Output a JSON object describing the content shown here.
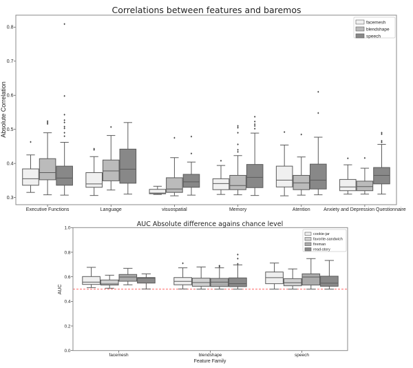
{
  "chart_data": [
    {
      "type": "box",
      "title": "Correlations between features and baremos",
      "xlabel": "",
      "ylabel": "Absolute Correlation",
      "ylim": [
        0.279,
        0.835
      ],
      "yticks": [
        0.3,
        0.4,
        0.5,
        0.6,
        0.7,
        0.8
      ],
      "ytick_labels": [
        "0.3",
        "0.4",
        "0.5",
        "0.6",
        "0.7",
        "0.8"
      ],
      "legend": "top-right",
      "grid": false,
      "categories": [
        "Executive Functions",
        "Language",
        "visuospatial",
        "Memory",
        "Atention",
        "Anxiety and Depression Questionnaire"
      ],
      "series": [
        {
          "name": "facemesh",
          "color": "#f0f0f0",
          "boxes": [
            {
              "low": 0.315,
              "q1": 0.336,
              "med": 0.355,
              "q3": 0.384,
              "high": 0.425,
              "outliers": [
                0.463
              ]
            },
            {
              "low": 0.306,
              "q1": 0.33,
              "med": 0.34,
              "q3": 0.373,
              "high": 0.42,
              "outliers": [
                0.44,
                0.443
              ]
            },
            {
              "low": 0.309,
              "q1": 0.311,
              "med": 0.313,
              "q3": 0.324,
              "high": 0.333,
              "outliers": []
            },
            {
              "low": 0.309,
              "q1": 0.323,
              "med": 0.341,
              "q3": 0.355,
              "high": 0.394,
              "outliers": [
                0.408
              ]
            },
            {
              "low": 0.305,
              "q1": 0.331,
              "med": 0.351,
              "q3": 0.392,
              "high": 0.454,
              "outliers": [
                0.492
              ]
            },
            {
              "low": 0.31,
              "q1": 0.32,
              "med": 0.331,
              "q3": 0.353,
              "high": 0.396,
              "outliers": [
                0.415
              ]
            }
          ]
        },
        {
          "name": "blendshape",
          "color": "#bbbbbb",
          "boxes": [
            {
              "low": 0.308,
              "q1": 0.352,
              "med": 0.373,
              "q3": 0.414,
              "high": 0.49,
              "outliers": [
                0.516,
                0.52,
                0.524
              ]
            },
            {
              "low": 0.322,
              "q1": 0.349,
              "med": 0.378,
              "q3": 0.41,
              "high": 0.482,
              "outliers": [
                0.507
              ]
            },
            {
              "low": 0.305,
              "q1": 0.315,
              "med": 0.325,
              "q3": 0.358,
              "high": 0.417,
              "outliers": [
                0.475
              ]
            },
            {
              "low": 0.308,
              "q1": 0.323,
              "med": 0.335,
              "q3": 0.365,
              "high": 0.423,
              "outliers": [
                0.434,
                0.44,
                0.456,
                0.49,
                0.505,
                0.51
              ]
            },
            {
              "low": 0.307,
              "q1": 0.323,
              "med": 0.343,
              "q3": 0.365,
              "high": 0.419,
              "outliers": [
                0.485
              ]
            },
            {
              "low": 0.31,
              "q1": 0.32,
              "med": 0.332,
              "q3": 0.348,
              "high": 0.386,
              "outliers": [
                0.416
              ]
            }
          ]
        },
        {
          "name": "speech",
          "color": "#888888",
          "boxes": [
            {
              "low": 0.307,
              "q1": 0.336,
              "med": 0.357,
              "q3": 0.392,
              "high": 0.462,
              "outliers": [
                0.48,
                0.49,
                0.503,
                0.508,
                0.52,
                0.527,
                0.543,
                0.598,
                0.809
              ]
            },
            {
              "low": 0.31,
              "q1": 0.342,
              "med": 0.383,
              "q3": 0.442,
              "high": 0.52,
              "outliers": []
            },
            {
              "low": 0.307,
              "q1": 0.33,
              "med": 0.346,
              "q3": 0.368,
              "high": 0.404,
              "outliers": [
                0.429,
                0.479
              ]
            },
            {
              "low": 0.306,
              "q1": 0.329,
              "med": 0.359,
              "q3": 0.397,
              "high": 0.489,
              "outliers": [
                0.502,
                0.51,
                0.515,
                0.523,
                0.537
              ]
            },
            {
              "low": 0.308,
              "q1": 0.325,
              "med": 0.351,
              "q3": 0.398,
              "high": 0.477,
              "outliers": [
                0.548,
                0.61
              ]
            },
            {
              "low": 0.31,
              "q1": 0.34,
              "med": 0.365,
              "q3": 0.388,
              "high": 0.456,
              "outliers": [
                0.462,
                0.466,
                0.486,
                0.49
              ]
            }
          ]
        }
      ]
    },
    {
      "type": "box",
      "title": "AUC Absolute difference agains chance level",
      "xlabel": "Feature Family",
      "ylabel": "AUC",
      "ylim": [
        0.0,
        1.0
      ],
      "yticks": [
        0.0,
        0.2,
        0.4,
        0.6,
        0.8,
        1.0
      ],
      "ytick_labels": [
        "0.0",
        "0.2",
        "0.4",
        "0.6",
        "0.8",
        "1.0"
      ],
      "legend": "top-right",
      "grid": false,
      "reference_line": {
        "y": 0.5,
        "color": "#ff6b6b",
        "style": "dashed"
      },
      "categories": [
        "facemesh",
        "blendshape",
        "speech"
      ],
      "series": [
        {
          "name": "cookie-jar",
          "color": "#efefef",
          "boxes": [
            {
              "low": 0.512,
              "q1": 0.538,
              "med": 0.557,
              "q3": 0.602,
              "high": 0.677,
              "outliers": []
            },
            {
              "low": 0.501,
              "q1": 0.535,
              "med": 0.563,
              "q3": 0.594,
              "high": 0.673,
              "outliers": [
                0.71
              ]
            },
            {
              "low": 0.5,
              "q1": 0.544,
              "med": 0.593,
              "q3": 0.639,
              "high": 0.712,
              "outliers": []
            }
          ]
        },
        {
          "name": "favorite-sandwich",
          "color": "#d0d0d0",
          "boxes": [
            {
              "low": 0.507,
              "q1": 0.533,
              "med": 0.542,
              "q3": 0.574,
              "high": 0.613,
              "outliers": []
            },
            {
              "low": 0.5,
              "q1": 0.523,
              "med": 0.553,
              "q3": 0.589,
              "high": 0.68,
              "outliers": []
            },
            {
              "low": 0.5,
              "q1": 0.527,
              "med": 0.552,
              "q3": 0.585,
              "high": 0.664,
              "outliers": []
            }
          ]
        },
        {
          "name": "fireman",
          "color": "#ababab",
          "boxes": [
            {
              "low": 0.535,
              "q1": 0.564,
              "med": 0.598,
              "q3": 0.619,
              "high": 0.669,
              "outliers": []
            },
            {
              "low": 0.5,
              "q1": 0.521,
              "med": 0.557,
              "q3": 0.587,
              "high": 0.673,
              "outliers": [
                0.682,
                0.69
              ]
            },
            {
              "low": 0.5,
              "q1": 0.533,
              "med": 0.598,
              "q3": 0.624,
              "high": 0.748,
              "outliers": []
            }
          ]
        },
        {
          "name": "read-story",
          "color": "#8a8a8a",
          "boxes": [
            {
              "low": 0.501,
              "q1": 0.549,
              "med": 0.589,
              "q3": 0.594,
              "high": 0.624,
              "outliers": []
            },
            {
              "low": 0.5,
              "q1": 0.52,
              "med": 0.544,
              "q3": 0.591,
              "high": 0.697,
              "outliers": [
                0.705,
                0.748,
                0.781
              ]
            },
            {
              "low": 0.5,
              "q1": 0.523,
              "med": 0.548,
              "q3": 0.605,
              "high": 0.733,
              "outliers": []
            }
          ]
        }
      ]
    }
  ]
}
